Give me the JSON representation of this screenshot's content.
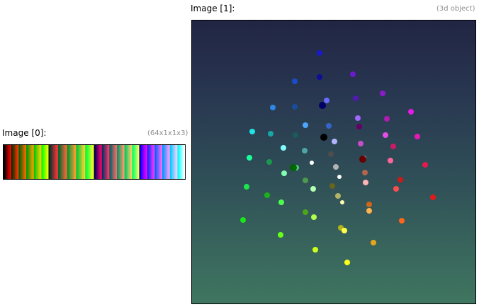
{
  "image0": {
    "label": "Image [0]:",
    "dims": "(64x1x1x3)",
    "strip": [
      [
        "#000000",
        "#330000",
        "#660000",
        "#990000",
        "#cc0000",
        "#ff0000",
        "#003300",
        "#333300",
        "#663300",
        "#993300",
        "#cc3300",
        "#ff3300",
        "#006600",
        "#336600",
        "#666600",
        "#996600",
        "#cc6600",
        "#ff6600",
        "#009900",
        "#339900",
        "#669900",
        "#999900",
        "#cc9900",
        "#ff9900",
        "#00cc00",
        "#33cc00",
        "#66cc00",
        "#99cc00",
        "#cccc00",
        "#ffcc00",
        "#00ff00",
        "#33ff00",
        "#66ff00",
        "#99ff00",
        "#ccff00",
        "#ffff00"
      ],
      [
        "#003333",
        "#333333",
        "#663333",
        "#993333",
        "#cc3333",
        "#ff3333",
        "#006633",
        "#336633",
        "#666633",
        "#996633",
        "#cc6633",
        "#ff6633",
        "#009933",
        "#339933",
        "#669933",
        "#999933",
        "#cc9933",
        "#ff9933",
        "#00cc33",
        "#33cc33",
        "#66cc33",
        "#99cc33",
        "#cccc33",
        "#ffcc33",
        "#00ff33",
        "#33ff33",
        "#66ff33",
        "#99ff33",
        "#ccff33",
        "#ffff33"
      ],
      [
        "#000066",
        "#330066",
        "#660066",
        "#990066",
        "#cc0066",
        "#ff0066",
        "#003366",
        "#333366",
        "#663366",
        "#993366",
        "#cc3366",
        "#ff3366",
        "#006666",
        "#336666",
        "#666666",
        "#996666",
        "#cc6666",
        "#ff6666",
        "#009966",
        "#339966",
        "#669966",
        "#999966",
        "#cc9966",
        "#ff9966",
        "#00cc66",
        "#33cc66",
        "#66cc66",
        "#99cc66",
        "#cccc66",
        "#ffcc66",
        "#00ff66",
        "#33ff66",
        "#66ff66",
        "#99ff66",
        "#ccff66",
        "#ffff66"
      ],
      [
        "#0000ff",
        "#3300ff",
        "#6600ff",
        "#9900ff",
        "#cc00ff",
        "#ff00ff",
        "#0033ff",
        "#3333ff",
        "#6633ff",
        "#9933ff",
        "#cc33ff",
        "#ff33ff",
        "#0066ff",
        "#3366ff",
        "#6666ff",
        "#9966ff",
        "#cc66ff",
        "#ff66ff",
        "#0099ff",
        "#3399ff",
        "#6699ff",
        "#9999ff",
        "#cc99ff",
        "#ff99ff",
        "#00ccff",
        "#33ccff",
        "#66ccff",
        "#99ccff",
        "#ccccff",
        "#ffccff",
        "#00ffff",
        "#33ffff",
        "#66ffff",
        "#99ffff",
        "#ccffff",
        "#ffffff"
      ]
    ]
  },
  "image1": {
    "label": "Image [1]:",
    "dims": "(3d object)",
    "background_top": "#212544",
    "background_bottom": "#3f7660",
    "points": [
      [
        180,
        46,
        "#1a1acc",
        4
      ],
      [
        227,
        76,
        "#6b1acc",
        4
      ],
      [
        180,
        80,
        "#0d0d99",
        4
      ],
      [
        145,
        86,
        "#1a4dcc",
        4
      ],
      [
        269,
        103,
        "#8c1acc",
        4
      ],
      [
        190,
        113,
        "#6b6bff",
        4
      ],
      [
        231,
        110,
        "#5219b3",
        4
      ],
      [
        184,
        120,
        "#000066",
        5
      ],
      [
        114,
        123,
        "#2f86e6",
        4
      ],
      [
        145,
        122,
        "#1a4d99",
        4
      ],
      [
        309,
        129,
        "#e619e6",
        4
      ],
      [
        275,
        139,
        "#b31ab3",
        4
      ],
      [
        234,
        138,
        "#a366ff",
        4
      ],
      [
        236,
        150,
        "#660066",
        4
      ],
      [
        160,
        148,
        "#4da6ff",
        4
      ],
      [
        193,
        149,
        "#3366cc",
        4
      ],
      [
        85,
        157,
        "#1ae6e6",
        4
      ],
      [
        111,
        160,
        "#19a6a6",
        4
      ],
      [
        146,
        162,
        "#1a5c5c",
        4
      ],
      [
        186,
        165,
        "#000000",
        5
      ],
      [
        273,
        162,
        "#e64de6",
        4
      ],
      [
        318,
        164,
        "#e619b3",
        4
      ],
      [
        201,
        171,
        "#b3b3ff",
        4
      ],
      [
        238,
        174,
        "#c84dc8",
        4
      ],
      [
        284,
        178,
        "#cc1a66",
        4
      ],
      [
        129,
        180,
        "#80ffff",
        4
      ],
      [
        159,
        184,
        "#4da6a6",
        4
      ],
      [
        196,
        189,
        "#4d4d4d",
        4
      ],
      [
        81,
        194,
        "#1aff99",
        4
      ],
      [
        109,
        200,
        "#1a994d",
        4
      ],
      [
        169,
        201,
        "#ffffff",
        3
      ],
      [
        242,
        195,
        "#ffffff",
        4
      ],
      [
        241,
        196,
        "#660000",
        5
      ],
      [
        280,
        198,
        "#ff6699",
        4
      ],
      [
        329,
        204,
        "#e6194d",
        4
      ],
      [
        147,
        208,
        "#4dcc80",
        4
      ],
      [
        130,
        216,
        "#80ffb3",
        4
      ],
      [
        144,
        208,
        "#1a8080",
        3
      ],
      [
        203,
        207,
        "#b3b3b3",
        4
      ],
      [
        244,
        215,
        "#b3664d",
        4
      ],
      [
        208,
        221,
        "#ffffff",
        3
      ],
      [
        294,
        225,
        "#cc1a1a",
        4
      ],
      [
        143,
        208,
        "#006600",
        5
      ],
      [
        160,
        226,
        "#4d994d",
        4
      ],
      [
        245,
        229,
        "#ffb3b3",
        4
      ],
      [
        77,
        235,
        "#1ae64d",
        4
      ],
      [
        171,
        238,
        "#b3ffb3",
        4
      ],
      [
        198,
        234,
        "#666619",
        4
      ],
      [
        288,
        238,
        "#ff4d4d",
        4
      ],
      [
        340,
        250,
        "#e61919",
        4
      ],
      [
        106,
        247,
        "#19b319",
        4
      ],
      [
        206,
        248,
        "#b3b366",
        4
      ],
      [
        212,
        257,
        "#ffffb3",
        3
      ],
      [
        126,
        257,
        "#4dff4d",
        4
      ],
      [
        250,
        260,
        "#cc6619",
        4
      ],
      [
        250,
        269,
        "#ffb34d",
        4
      ],
      [
        160,
        271,
        "#4da619",
        4
      ],
      [
        172,
        278,
        "#b3ff4d",
        4
      ],
      [
        72,
        282,
        "#19e619",
        4
      ],
      [
        296,
        283,
        "#ff661a",
        4
      ],
      [
        210,
        293,
        "#b3b319",
        4
      ],
      [
        215,
        297,
        "#ffff4d",
        4
      ],
      [
        125,
        303,
        "#66ff1a",
        4
      ],
      [
        256,
        314,
        "#e6a619",
        4
      ],
      [
        174,
        324,
        "#ccff19",
        4
      ],
      [
        219,
        342,
        "#ffff19",
        4
      ]
    ]
  }
}
